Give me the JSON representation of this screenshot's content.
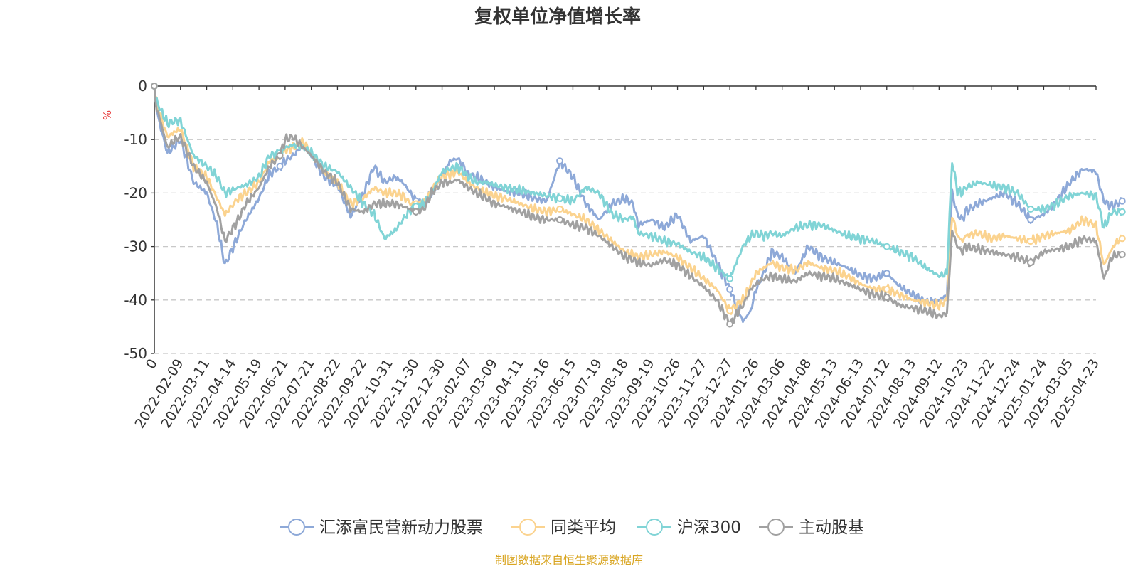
{
  "chart_data": {
    "type": "line",
    "title": "复权单位净值增长率",
    "ylabel": "%",
    "ylim": [
      -50,
      0
    ],
    "y_ticks": [
      "0",
      "-10",
      "-20",
      "-30",
      "-40",
      "-50"
    ],
    "x_ticks": [
      "0",
      "2022-02-09",
      "2022-03-11",
      "2022-04-14",
      "2022-05-19",
      "2022-06-21",
      "2022-07-21",
      "2022-08-22",
      "2022-09-22",
      "2022-10-31",
      "2022-11-30",
      "2022-12-30",
      "2023-02-07",
      "2023-03-09",
      "2023-04-11",
      "2023-05-16",
      "2023-06-15",
      "2023-07-19",
      "2023-08-18",
      "2023-09-19",
      "2023-10-26",
      "2023-11-27",
      "2023-12-27",
      "2024-01-26",
      "2024-03-06",
      "2024-04-08",
      "2024-05-13",
      "2024-06-13",
      "2024-07-12",
      "2024-08-13",
      "2024-09-12",
      "2024-10-23",
      "2024-11-22",
      "2024-12-24",
      "2025-01-24",
      "2025-03-05",
      "2025-04-23"
    ],
    "grid": true,
    "legend_position": "bottom",
    "x_knots": [
      0,
      0.04,
      0.2,
      0.5,
      0.8,
      1.0,
      1.5,
      2.0,
      2.4,
      2.7,
      3.2,
      3.5,
      4.0,
      4.4,
      4.8,
      5.0,
      5.3,
      5.7,
      6.0,
      6.5,
      7.0,
      7.5,
      8.0,
      8.4,
      8.8,
      9.2,
      9.5,
      9.8,
      10.0,
      10.3,
      10.6,
      11.0,
      11.3,
      11.6,
      12.0,
      12.3,
      12.7,
      13.0,
      13.4,
      14.0,
      14.5,
      15.0,
      15.5,
      16.0,
      16.5,
      17.0,
      17.5,
      18.0,
      18.3,
      18.5,
      19.0,
      19.5,
      20.0,
      20.5,
      21.0,
      21.5,
      22.0,
      22.5,
      22.8,
      23.0,
      23.3,
      23.6,
      24.0,
      24.5,
      25.0,
      25.5,
      26.0,
      26.5,
      27.0,
      27.5,
      28.0,
      28.5,
      29.0,
      29.5,
      30.0,
      30.3,
      30.5,
      30.7,
      30.9,
      31.0,
      31.5,
      32.0,
      32.5,
      33.0,
      33.5,
      34.0,
      34.5,
      35.0,
      35.5,
      36.0,
      36.3,
      36.6,
      36.8,
      37.0
    ],
    "series": [
      {
        "name": "汇添富民营新动力股票",
        "color": "#8ea9d8",
        "values": [
          0,
          -3,
          -7,
          -12.5,
          -11,
          -10,
          -18,
          -20,
          -26,
          -33.5,
          -28,
          -25,
          -21,
          -16.5,
          -15,
          -14,
          -13,
          -11,
          -13,
          -17,
          -18.5,
          -24.5,
          -20,
          -15,
          -18,
          -17,
          -18,
          -20,
          -21.5,
          -22,
          -20,
          -17,
          -14,
          -13.5,
          -16.5,
          -17,
          -18,
          -19,
          -19.5,
          -20,
          -21,
          -21.5,
          -14,
          -17,
          -22,
          -25,
          -22,
          -21,
          -22,
          -26,
          -25,
          -26.5,
          -24,
          -29,
          -28,
          -33,
          -38,
          -44,
          -42,
          -38,
          -35,
          -31,
          -32,
          -35,
          -30,
          -32,
          -33,
          -34,
          -35.5,
          -36,
          -35,
          -37.5,
          -39,
          -40.5,
          -40,
          -39,
          -20,
          -24,
          -25,
          -23.5,
          -22,
          -21,
          -20,
          -22,
          -25,
          -24,
          -21.5,
          -18,
          -15.5,
          -16,
          -21.5,
          -22.5,
          -22,
          -21.5
        ]
      },
      {
        "name": "同类平均",
        "color": "#fbd38f",
        "values": [
          0,
          -2,
          -5,
          -9.5,
          -8.5,
          -8,
          -15,
          -17,
          -21,
          -24,
          -21,
          -20,
          -18,
          -14,
          -13,
          -12,
          -11.5,
          -10.5,
          -12.5,
          -16,
          -18,
          -22,
          -21,
          -19,
          -20,
          -20,
          -20.5,
          -22,
          -22,
          -21.5,
          -19.5,
          -17,
          -16.5,
          -16,
          -18,
          -19,
          -20,
          -20.5,
          -21,
          -22,
          -23,
          -23.5,
          -23,
          -24,
          -25,
          -27,
          -29,
          -31,
          -31.5,
          -32,
          -31.5,
          -31,
          -32,
          -34,
          -36,
          -38,
          -42,
          -40,
          -37,
          -35,
          -34,
          -33,
          -34,
          -34.5,
          -33,
          -34,
          -34.5,
          -35.5,
          -37,
          -38,
          -38,
          -39,
          -40,
          -40.5,
          -41,
          -40,
          -24,
          -28,
          -29,
          -28,
          -27.5,
          -28.5,
          -28,
          -28.5,
          -29,
          -28,
          -27.5,
          -27,
          -25,
          -26,
          -33.5,
          -30.5,
          -29,
          -28.5
        ]
      },
      {
        "name": "沪深300",
        "color": "#81d4d6",
        "values": [
          0,
          -2,
          -4,
          -7,
          -6.5,
          -6.5,
          -13,
          -15,
          -17,
          -20,
          -19,
          -18.5,
          -17,
          -13,
          -12.5,
          -11.5,
          -11,
          -11.5,
          -12.5,
          -15,
          -16,
          -19,
          -22,
          -24,
          -28.5,
          -27,
          -25,
          -23,
          -22.5,
          -22,
          -20,
          -16,
          -15.5,
          -15,
          -17,
          -18,
          -18,
          -18.5,
          -19,
          -19.5,
          -20,
          -20.5,
          -21,
          -21.5,
          -19,
          -20,
          -24,
          -25,
          -24.5,
          -27.5,
          -28,
          -29,
          -29.5,
          -31,
          -32,
          -34,
          -36,
          -30,
          -28,
          -27.5,
          -28,
          -27.5,
          -28,
          -26.5,
          -26,
          -26,
          -27,
          -28,
          -28.5,
          -29,
          -30,
          -31,
          -32,
          -34,
          -35.5,
          -35,
          -14,
          -19.5,
          -20,
          -19,
          -18,
          -18.5,
          -19,
          -20,
          -23,
          -23,
          -22,
          -20.5,
          -20,
          -20.5,
          -26.5,
          -23.5,
          -23.5,
          -23.5
        ]
      },
      {
        "name": "主动股基",
        "color": "#a1a1a1",
        "values": [
          0,
          -3,
          -6,
          -11.5,
          -10,
          -9.5,
          -15,
          -18,
          -23,
          -29,
          -25,
          -22,
          -19,
          -15,
          -13,
          -10,
          -9.5,
          -11.5,
          -13,
          -16,
          -18,
          -23,
          -23.5,
          -22,
          -22,
          -22,
          -22.5,
          -23,
          -23.5,
          -23,
          -20,
          -18,
          -18,
          -17.5,
          -19,
          -20,
          -21,
          -22,
          -22.5,
          -23.5,
          -24.5,
          -25,
          -25,
          -26,
          -26.5,
          -28,
          -30,
          -32,
          -32.5,
          -33,
          -33.5,
          -32.5,
          -33.5,
          -35.5,
          -37.5,
          -40,
          -44.5,
          -41,
          -38,
          -37,
          -36,
          -35.5,
          -36,
          -36.5,
          -35,
          -35.5,
          -36,
          -37,
          -38,
          -39,
          -39.5,
          -41,
          -41.5,
          -42,
          -43,
          -42.5,
          -27,
          -30,
          -31,
          -30,
          -30.5,
          -31,
          -31.5,
          -32,
          -33,
          -31,
          -30.5,
          -30,
          -28.5,
          -29,
          -36,
          -32,
          -31.5,
          -31.5
        ]
      }
    ]
  },
  "source_text": "制图数据来自恒生聚源数据库"
}
